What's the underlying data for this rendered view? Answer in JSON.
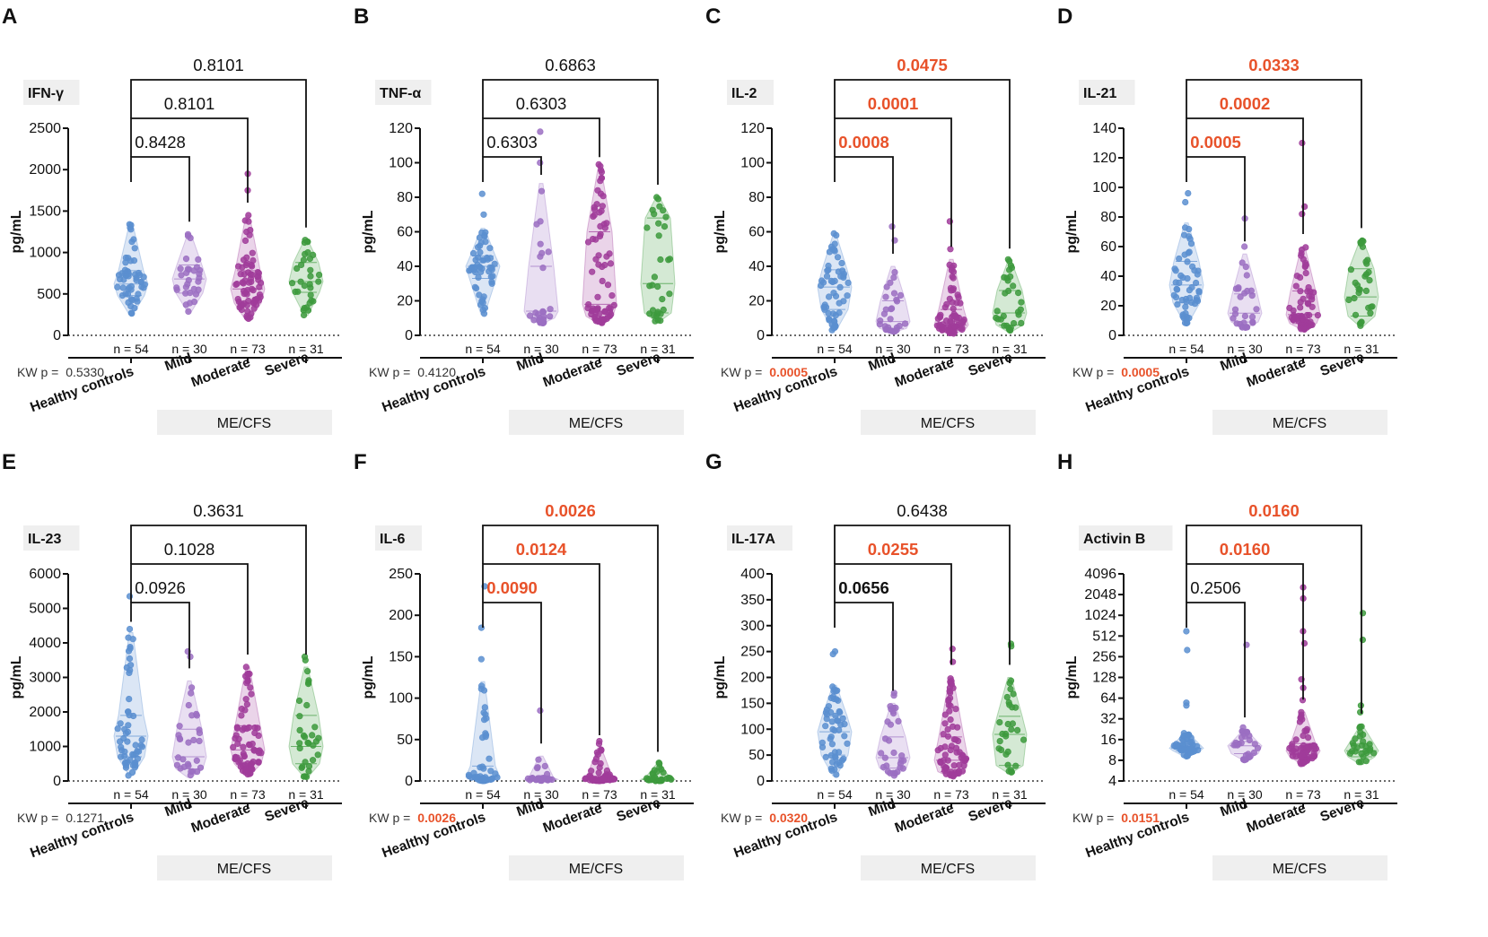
{
  "figure": {
    "group_label": "ME/CFS",
    "kw_prefix": "KW p = ",
    "y_unit": "pg/mL",
    "categories": [
      "Healthy controls",
      "Mild",
      "Moderate",
      "Severe"
    ],
    "n_labels": [
      "n = 54",
      "n = 30",
      "n = 73",
      "n = 31"
    ],
    "colors": {
      "Healthy controls": "#5b8fd0",
      "Mild": "#9b6fc2",
      "Moderate": "#a03c9a",
      "Severe": "#3d9a3d",
      "significant": "#e8522a",
      "text": "#111111"
    }
  },
  "chart_data": [
    {
      "panel": "A",
      "type": "violin-scatter",
      "title": "IFN-γ",
      "ylabel": "pg/mL",
      "yscale": "linear",
      "ylim": [
        0,
        2500
      ],
      "yticks": [
        0,
        500,
        1000,
        1500,
        2000,
        2500
      ],
      "kw_p": "0.5330",
      "kw_significant": false,
      "comparisons": [
        {
          "from": "Healthy controls",
          "to": "Mild",
          "p": "0.8428",
          "style": "normal"
        },
        {
          "from": "Healthy controls",
          "to": "Moderate",
          "p": "0.8101",
          "style": "normal"
        },
        {
          "from": "Healthy controls",
          "to": "Severe",
          "p": "0.8101",
          "style": "normal"
        }
      ],
      "groups": [
        {
          "name": "Healthy controls",
          "n": 54,
          "min": 250,
          "q1": 480,
          "median": 620,
          "q3": 780,
          "max": 1340,
          "outliers": [
            1340,
            1300
          ]
        },
        {
          "name": "Mild",
          "n": 30,
          "min": 280,
          "q1": 510,
          "median": 680,
          "q3": 850,
          "max": 1220,
          "outliers": [
            1220,
            1200
          ]
        },
        {
          "name": "Moderate",
          "n": 73,
          "min": 180,
          "q1": 390,
          "median": 560,
          "q3": 780,
          "max": 1450,
          "outliers": [
            1950,
            1750,
            1450
          ]
        },
        {
          "name": "Severe",
          "n": 31,
          "min": 240,
          "q1": 520,
          "median": 650,
          "q3": 880,
          "max": 1150,
          "outliers": [
            1150,
            1120
          ]
        }
      ]
    },
    {
      "panel": "B",
      "type": "violin-scatter",
      "title": "TNF-α",
      "ylabel": "pg/mL",
      "yscale": "linear",
      "ylim": [
        0,
        120
      ],
      "yticks": [
        0,
        20,
        40,
        60,
        80,
        100,
        120
      ],
      "kw_p": "0.4120",
      "kw_significant": false,
      "comparisons": [
        {
          "from": "Healthy controls",
          "to": "Mild",
          "p": "0.6303",
          "style": "normal"
        },
        {
          "from": "Healthy controls",
          "to": "Moderate",
          "p": "0.6303",
          "style": "normal"
        },
        {
          "from": "Healthy controls",
          "to": "Severe",
          "p": "0.6863",
          "style": "normal"
        }
      ],
      "groups": [
        {
          "name": "Healthy controls",
          "n": 54,
          "min": 12,
          "q1": 33,
          "median": 40,
          "q3": 46,
          "max": 62,
          "outliers": [
            82,
            70
          ]
        },
        {
          "name": "Mild",
          "n": 30,
          "min": 7,
          "q1": 10,
          "median": 14,
          "q3": 40,
          "max": 88,
          "outliers": [
            118,
            100
          ]
        },
        {
          "name": "Moderate",
          "n": 73,
          "min": 7,
          "q1": 11,
          "median": 18,
          "q3": 60,
          "max": 96,
          "outliers": [
            99,
            98
          ]
        },
        {
          "name": "Severe",
          "n": 31,
          "min": 8,
          "q1": 13,
          "median": 30,
          "q3": 68,
          "max": 80,
          "outliers": [
            80,
            79
          ]
        }
      ]
    },
    {
      "panel": "C",
      "type": "violin-scatter",
      "title": "IL-2",
      "ylabel": "pg/mL",
      "yscale": "linear",
      "ylim": [
        0,
        120
      ],
      "yticks": [
        0,
        20,
        40,
        60,
        80,
        100,
        120
      ],
      "kw_p": "0.0005",
      "kw_significant": true,
      "comparisons": [
        {
          "from": "Healthy controls",
          "to": "Mild",
          "p": "0.0008",
          "style": "significant"
        },
        {
          "from": "Healthy controls",
          "to": "Moderate",
          "p": "0.0001",
          "style": "significant"
        },
        {
          "from": "Healthy controls",
          "to": "Severe",
          "p": "0.0475",
          "style": "significant"
        }
      ],
      "groups": [
        {
          "name": "Healthy controls",
          "n": 54,
          "min": 3,
          "q1": 15,
          "median": 28,
          "q3": 38,
          "max": 58,
          "outliers": [
            59,
            58
          ]
        },
        {
          "name": "Mild",
          "n": 30,
          "min": 2,
          "q1": 4,
          "median": 8,
          "q3": 20,
          "max": 40,
          "outliers": [
            63,
            55
          ]
        },
        {
          "name": "Moderate",
          "n": 73,
          "min": 1,
          "q1": 3,
          "median": 6,
          "q3": 15,
          "max": 44,
          "outliers": [
            66,
            50
          ]
        },
        {
          "name": "Severe",
          "n": 31,
          "min": 2,
          "q1": 6,
          "median": 13,
          "q3": 26,
          "max": 43,
          "outliers": [
            44,
            43
          ]
        }
      ]
    },
    {
      "panel": "D",
      "type": "violin-scatter",
      "title": "IL-21",
      "ylabel": "pg/mL",
      "yscale": "linear",
      "ylim": [
        0,
        140
      ],
      "yticks": [
        0,
        20,
        40,
        60,
        80,
        100,
        120,
        140
      ],
      "kw_p": "0.0005",
      "kw_significant": true,
      "comparisons": [
        {
          "from": "Healthy controls",
          "to": "Mild",
          "p": "0.0005",
          "style": "significant"
        },
        {
          "from": "Healthy controls",
          "to": "Moderate",
          "p": "0.0002",
          "style": "significant"
        },
        {
          "from": "Healthy controls",
          "to": "Severe",
          "p": "0.0333",
          "style": "significant"
        }
      ],
      "groups": [
        {
          "name": "Healthy controls",
          "n": 54,
          "min": 8,
          "q1": 22,
          "median": 34,
          "q3": 50,
          "max": 76,
          "outliers": [
            96,
            90
          ]
        },
        {
          "name": "Mild",
          "n": 30,
          "min": 5,
          "q1": 9,
          "median": 15,
          "q3": 28,
          "max": 55,
          "outliers": [
            79,
            60
          ]
        },
        {
          "name": "Moderate",
          "n": 73,
          "min": 4,
          "q1": 8,
          "median": 14,
          "q3": 30,
          "max": 60,
          "outliers": [
            130,
            87,
            82
          ]
        },
        {
          "name": "Severe",
          "n": 31,
          "min": 6,
          "q1": 13,
          "median": 26,
          "q3": 45,
          "max": 64,
          "outliers": [
            64,
            62
          ]
        }
      ]
    },
    {
      "panel": "E",
      "type": "violin-scatter",
      "title": "IL-23",
      "ylabel": "pg/mL",
      "yscale": "linear",
      "ylim": [
        0,
        6000
      ],
      "yticks": [
        0,
        1000,
        2000,
        3000,
        4000,
        5000,
        6000
      ],
      "kw_p": "0.1271",
      "kw_significant": false,
      "comparisons": [
        {
          "from": "Healthy controls",
          "to": "Mild",
          "p": "0.0926",
          "style": "normal"
        },
        {
          "from": "Healthy controls",
          "to": "Moderate",
          "p": "0.1028",
          "style": "normal"
        },
        {
          "from": "Healthy controls",
          "to": "Severe",
          "p": "0.3631",
          "style": "normal"
        }
      ],
      "groups": [
        {
          "name": "Healthy controls",
          "n": 54,
          "min": 150,
          "q1": 700,
          "median": 1300,
          "q3": 1900,
          "max": 4300,
          "outliers": [
            5350,
            4400
          ]
        },
        {
          "name": "Mild",
          "n": 30,
          "min": 100,
          "q1": 350,
          "median": 700,
          "q3": 1500,
          "max": 2900,
          "outliers": [
            3750,
            3600
          ]
        },
        {
          "name": "Moderate",
          "n": 73,
          "min": 150,
          "q1": 500,
          "median": 900,
          "q3": 1600,
          "max": 3300,
          "outliers": [
            3300,
            3100
          ]
        },
        {
          "name": "Severe",
          "n": 31,
          "min": 100,
          "q1": 500,
          "median": 1000,
          "q3": 1900,
          "max": 3300,
          "outliers": [
            3600,
            3500
          ]
        }
      ]
    },
    {
      "panel": "F",
      "type": "violin-scatter",
      "title": "IL-6",
      "ylabel": "pg/mL",
      "yscale": "linear",
      "ylim": [
        0,
        250
      ],
      "yticks": [
        0,
        50,
        100,
        150,
        200,
        250
      ],
      "kw_p": "0.0026",
      "kw_significant": true,
      "comparisons": [
        {
          "from": "Healthy controls",
          "to": "Mild",
          "p": "0.0090",
          "style": "significant"
        },
        {
          "from": "Healthy controls",
          "to": "Moderate",
          "p": "0.0124",
          "style": "significant"
        },
        {
          "from": "Healthy controls",
          "to": "Severe",
          "p": "0.0026",
          "style": "significant"
        }
      ],
      "groups": [
        {
          "name": "Healthy controls",
          "n": 54,
          "min": 0,
          "q1": 2,
          "median": 5,
          "q3": 18,
          "max": 120,
          "outliers": [
            235,
            185,
            147
          ]
        },
        {
          "name": "Mild",
          "n": 30,
          "min": 0,
          "q1": 1,
          "median": 2,
          "q3": 4,
          "max": 30,
          "outliers": [
            85
          ]
        },
        {
          "name": "Moderate",
          "n": 73,
          "min": 0,
          "q1": 1,
          "median": 2,
          "q3": 6,
          "max": 40,
          "outliers": [
            48,
            45
          ]
        },
        {
          "name": "Severe",
          "n": 31,
          "min": 0,
          "q1": 1,
          "median": 2,
          "q3": 4,
          "max": 20,
          "outliers": [
            22,
            21
          ]
        }
      ]
    },
    {
      "panel": "G",
      "type": "violin-scatter",
      "title": "IL-17A",
      "ylabel": "pg/mL",
      "yscale": "linear",
      "ylim": [
        0,
        400
      ],
      "yticks": [
        0,
        50,
        100,
        150,
        200,
        250,
        300,
        350,
        400
      ],
      "kw_p": "0.0320",
      "kw_significant": true,
      "comparisons": [
        {
          "from": "Healthy controls",
          "to": "Mild",
          "p": "0.0656",
          "style": "bold"
        },
        {
          "from": "Healthy controls",
          "to": "Moderate",
          "p": "0.0255",
          "style": "significant"
        },
        {
          "from": "Healthy controls",
          "to": "Severe",
          "p": "0.6438",
          "style": "normal"
        }
      ],
      "groups": [
        {
          "name": "Healthy controls",
          "n": 54,
          "min": 10,
          "q1": 50,
          "median": 95,
          "q3": 125,
          "max": 185,
          "outliers": [
            250,
            245
          ]
        },
        {
          "name": "Mild",
          "n": 30,
          "min": 10,
          "q1": 25,
          "median": 45,
          "q3": 85,
          "max": 150,
          "outliers": [
            170,
            165
          ]
        },
        {
          "name": "Moderate",
          "n": 73,
          "min": 8,
          "q1": 18,
          "median": 40,
          "q3": 85,
          "max": 200,
          "outliers": [
            255,
            230
          ]
        },
        {
          "name": "Severe",
          "n": 31,
          "min": 15,
          "q1": 30,
          "median": 90,
          "q3": 125,
          "max": 200,
          "outliers": [
            265,
            260
          ]
        }
      ]
    },
    {
      "panel": "H",
      "type": "violin-scatter",
      "title": "Activin B",
      "ylabel": "pg/mL",
      "yscale": "log2",
      "ylim": [
        4,
        4096
      ],
      "yticks": [
        4,
        8,
        16,
        32,
        64,
        128,
        256,
        512,
        1024,
        2048,
        4096
      ],
      "kw_p": "0.0151",
      "kw_significant": true,
      "comparisons": [
        {
          "from": "Healthy controls",
          "to": "Mild",
          "p": "0.2506",
          "style": "normal"
        },
        {
          "from": "Healthy controls",
          "to": "Moderate",
          "p": "0.0160",
          "style": "significant"
        },
        {
          "from": "Healthy controls",
          "to": "Severe",
          "p": "0.0160",
          "style": "significant"
        }
      ],
      "groups": [
        {
          "name": "Healthy controls",
          "n": 54,
          "min": 9,
          "q1": 11,
          "median": 12,
          "q3": 14,
          "max": 20,
          "outliers": [
            600,
            320,
            55,
            50
          ]
        },
        {
          "name": "Mild",
          "n": 30,
          "min": 8,
          "q1": 10,
          "median": 13,
          "q3": 15,
          "max": 22,
          "outliers": [
            380,
            24
          ]
        },
        {
          "name": "Moderate",
          "n": 73,
          "min": 7,
          "q1": 9,
          "median": 11,
          "q3": 14,
          "max": 40,
          "outliers": [
            2600,
            1800,
            600,
            400,
            120,
            90,
            60
          ]
        },
        {
          "name": "Severe",
          "n": 31,
          "min": 7,
          "q1": 9,
          "median": 11,
          "q3": 14,
          "max": 25,
          "outliers": [
            1100,
            450,
            50,
            40
          ]
        }
      ]
    }
  ]
}
